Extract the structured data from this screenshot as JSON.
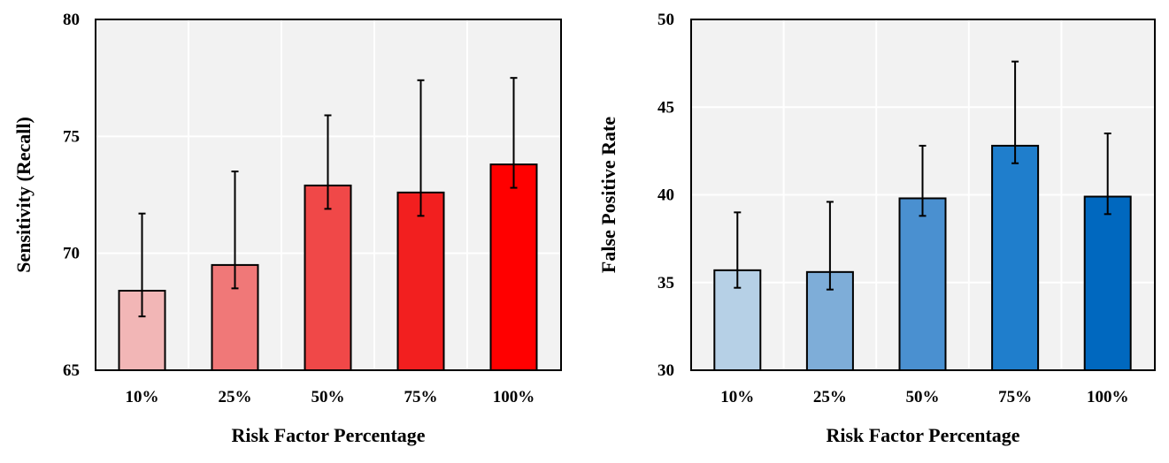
{
  "chart_data": [
    {
      "type": "bar",
      "title": "",
      "xlabel": "Risk Factor Percentage",
      "ylabel": "Sensitivity (Recall)",
      "categories": [
        "10%",
        "25%",
        "50%",
        "75%",
        "100%"
      ],
      "values": [
        68.4,
        69.5,
        72.9,
        72.6,
        73.8
      ],
      "error_upper": [
        71.7,
        73.5,
        75.9,
        77.4,
        77.5
      ],
      "error_lower": [
        67.3,
        68.5,
        71.9,
        71.6,
        72.8
      ],
      "ylim": [
        65,
        80
      ],
      "yticks": [
        "65",
        "70",
        "75",
        "80"
      ],
      "grid": true,
      "colors": [
        "#f2b6b6",
        "#f07878",
        "#f04848",
        "#f21f1f",
        "#ff0000"
      ]
    },
    {
      "type": "bar",
      "title": "",
      "xlabel": "Risk Factor Percentage",
      "ylabel": "False Positive Rate",
      "categories": [
        "10%",
        "25%",
        "50%",
        "75%",
        "100%"
      ],
      "values": [
        35.7,
        35.6,
        39.8,
        42.8,
        39.9
      ],
      "error_upper": [
        39.0,
        39.6,
        42.8,
        47.6,
        43.5
      ],
      "error_lower": [
        34.7,
        34.6,
        38.8,
        41.8,
        38.9
      ],
      "ylim": [
        30,
        50
      ],
      "yticks": [
        "30",
        "35",
        "40",
        "45",
        "50"
      ],
      "grid": true,
      "colors": [
        "#b6d0e6",
        "#7eadd8",
        "#4a90d0",
        "#1f7ecc",
        "#0068bf"
      ]
    }
  ]
}
